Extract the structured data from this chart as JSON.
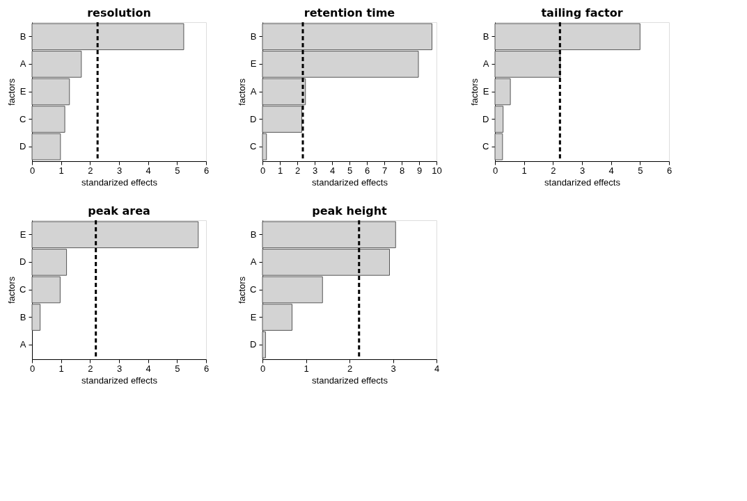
{
  "chart_data": [
    {
      "type": "bar",
      "orientation": "horizontal",
      "title": "resolution",
      "xlabel": "standarized effects",
      "ylabel": "factors",
      "categories": [
        "B",
        "A",
        "E",
        "C",
        "D"
      ],
      "values": [
        5.23,
        1.7,
        1.29,
        1.13,
        0.98
      ],
      "color": "#d3d3d3",
      "xlim": [
        0,
        6
      ],
      "xticks": [
        0,
        1,
        2,
        3,
        4,
        5,
        6
      ],
      "grid": false,
      "ref_lines": [
        {
          "axis": "x",
          "value": 2.26,
          "line_style": "dashed",
          "color": "#000000"
        }
      ]
    },
    {
      "type": "bar",
      "orientation": "horizontal",
      "title": "retention time",
      "xlabel": "standarized effects",
      "ylabel": "factors",
      "categories": [
        "B",
        "E",
        "A",
        "D",
        "C"
      ],
      "values": [
        9.74,
        8.96,
        2.47,
        2.26,
        0.23
      ],
      "color": "#d3d3d3",
      "xlim": [
        0,
        10
      ],
      "xticks": [
        0,
        1,
        2,
        3,
        4,
        5,
        6,
        7,
        8,
        9,
        10
      ],
      "grid": false,
      "ref_lines": [
        {
          "axis": "x",
          "value": 2.32,
          "line_style": "dashed",
          "color": "#000000"
        }
      ]
    },
    {
      "type": "bar",
      "orientation": "horizontal",
      "title": "tailing factor",
      "xlabel": "standarized effects",
      "ylabel": "factors",
      "categories": [
        "B",
        "A",
        "E",
        "D",
        "C"
      ],
      "values": [
        5.0,
        2.25,
        0.53,
        0.28,
        0.26
      ],
      "color": "#d3d3d3",
      "xlim": [
        0,
        6
      ],
      "xticks": [
        0,
        1,
        2,
        3,
        4,
        5,
        6
      ],
      "grid": false,
      "ref_lines": [
        {
          "axis": "x",
          "value": 2.24,
          "line_style": "dashed",
          "color": "#000000"
        }
      ]
    },
    {
      "type": "bar",
      "orientation": "horizontal",
      "title": "peak area",
      "xlabel": "standarized effects",
      "ylabel": "factors",
      "categories": [
        "E",
        "D",
        "C",
        "B",
        "A"
      ],
      "values": [
        5.73,
        1.19,
        0.97,
        0.28,
        0
      ],
      "color": "#d3d3d3",
      "xlim": [
        0,
        6
      ],
      "xticks": [
        0,
        1,
        2,
        3,
        4,
        5,
        6
      ],
      "grid": false,
      "ref_lines": [
        {
          "axis": "x",
          "value": 2.2,
          "line_style": "dashed",
          "color": "#000000"
        }
      ]
    },
    {
      "type": "bar",
      "orientation": "horizontal",
      "title": "peak height",
      "xlabel": "standarized effects",
      "ylabel": "factors",
      "categories": [
        "B",
        "A",
        "C",
        "E",
        "D"
      ],
      "values": [
        3.06,
        2.92,
        1.38,
        0.68,
        0.07
      ],
      "color": "#d3d3d3",
      "xlim": [
        0,
        4
      ],
      "xticks": [
        0,
        1,
        2,
        3,
        4
      ],
      "grid": false,
      "ref_lines": [
        {
          "axis": "x",
          "value": 2.22,
          "line_style": "dashed",
          "color": "#000000"
        }
      ]
    }
  ]
}
